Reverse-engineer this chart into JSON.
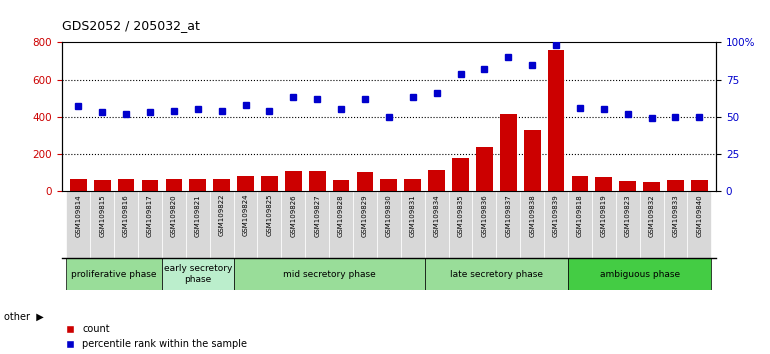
{
  "title": "GDS2052 / 205032_at",
  "samples": [
    "GSM109814",
    "GSM109815",
    "GSM109816",
    "GSM109817",
    "GSM109820",
    "GSM109821",
    "GSM109822",
    "GSM109824",
    "GSM109825",
    "GSM109826",
    "GSM109827",
    "GSM109828",
    "GSM109829",
    "GSM109830",
    "GSM109831",
    "GSM109834",
    "GSM109835",
    "GSM109836",
    "GSM109837",
    "GSM109838",
    "GSM109839",
    "GSM109818",
    "GSM109819",
    "GSM109823",
    "GSM109832",
    "GSM109833",
    "GSM109840"
  ],
  "count": [
    65,
    55,
    65,
    55,
    65,
    65,
    65,
    80,
    80,
    105,
    105,
    60,
    100,
    65,
    65,
    110,
    175,
    235,
    415,
    330,
    760,
    80,
    75,
    50,
    45,
    60,
    55
  ],
  "percentile": [
    57,
    53,
    52,
    53,
    54,
    55,
    54,
    58,
    54,
    63,
    62,
    55,
    62,
    50,
    63,
    66,
    79,
    82,
    90,
    85,
    98,
    56,
    55,
    52,
    49,
    50,
    50
  ],
  "phases": [
    {
      "label": "proliferative phase",
      "start": 0,
      "end": 3
    },
    {
      "label": "early secretory\nphase",
      "start": 4,
      "end": 6
    },
    {
      "label": "mid secretory phase",
      "start": 7,
      "end": 14
    },
    {
      "label": "late secretory phase",
      "start": 15,
      "end": 20
    },
    {
      "label": "ambiguous phase",
      "start": 21,
      "end": 26
    }
  ],
  "phase_colors": [
    "#99dd99",
    "#bbeecc",
    "#99dd99",
    "#99dd99",
    "#44cc44"
  ],
  "bar_color": "#CC0000",
  "dot_color": "#0000CC",
  "ylim_left": [
    0,
    800
  ],
  "ylim_right": [
    0,
    100
  ],
  "yticks_left": [
    0,
    200,
    400,
    600,
    800
  ],
  "yticks_right": [
    0,
    25,
    50,
    75,
    100
  ],
  "ytick_labels_right": [
    "0",
    "25",
    "50",
    "75",
    "100%"
  ]
}
